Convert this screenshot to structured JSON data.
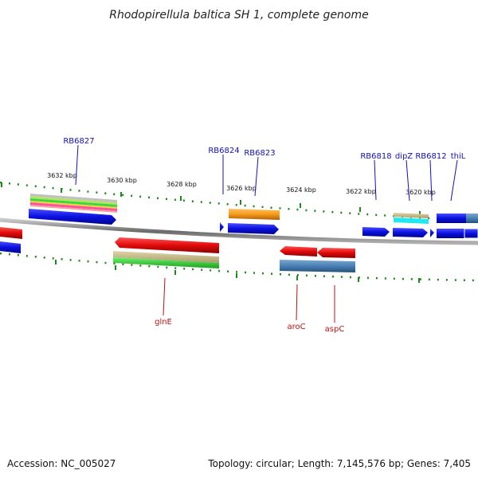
{
  "title": "Rhodopirellula baltica SH 1, complete genome",
  "footer": {
    "accession": "Accession: NC_005027",
    "summary": "Topology: circular; Length: 7,145,576 bp; Genes: 7,405"
  },
  "ticks": [
    "3632 kbp",
    "3630 kbp",
    "3628 kbp",
    "3626 kbp",
    "3624 kbp",
    "3622 kbp",
    "3620 kbp"
  ],
  "gene_labels_top": [
    "RB6827",
    "RB6824",
    "RB6823",
    "RB6818",
    "dipZ",
    "RB6812",
    "thiL"
  ],
  "gene_labels_bottom": [
    "glnE",
    "aroC",
    "aspC"
  ],
  "colors": {
    "forward_cds": "#0a10e0",
    "reverse_cds": "#e00a0a",
    "backbone": "#8a8a8a",
    "tick": "#1a8a1a",
    "label_blue": "#1010c0",
    "label_red": "#c01010"
  }
}
